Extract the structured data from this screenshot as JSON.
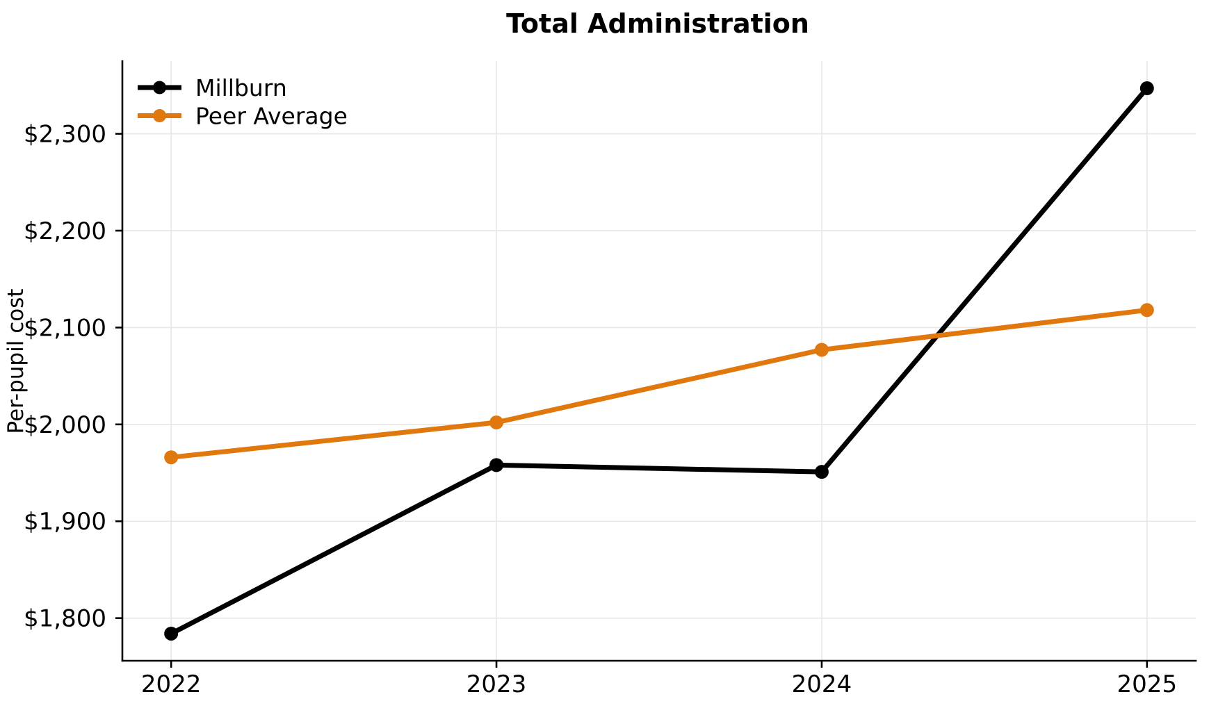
{
  "chart_data": {
    "type": "line",
    "title": "Total Administration",
    "xlabel": "",
    "ylabel": "Per-pupil cost",
    "x": [
      2022,
      2023,
      2024,
      2025
    ],
    "x_tick_labels": [
      "2022",
      "2023",
      "2024",
      "2025"
    ],
    "y_ticks": [
      1800,
      1900,
      2000,
      2100,
      2200,
      2300
    ],
    "y_tick_labels": [
      "$1,800",
      "$1,900",
      "$2,000",
      "$2,100",
      "$2,200",
      "$2,300"
    ],
    "series": [
      {
        "name": "Millburn",
        "color": "#000000",
        "values": [
          1784,
          1958,
          1951,
          2347
        ]
      },
      {
        "name": "Peer Average",
        "color": "#E0780E",
        "values": [
          1966,
          2002,
          2077,
          2118
        ]
      }
    ],
    "xlim": [
      2021.85,
      2025.15
    ],
    "ylim": [
      1756,
      2375
    ],
    "grid": true,
    "grid_color": "#E7E7E7",
    "axis_color": "#000000",
    "legend_position": "upper-left"
  }
}
